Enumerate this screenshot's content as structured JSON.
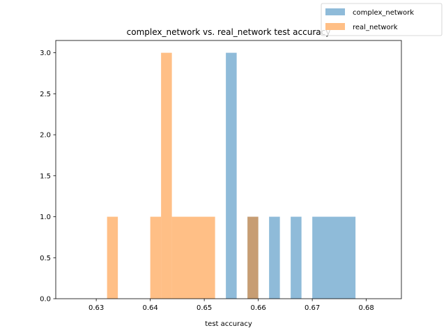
{
  "chart_data": {
    "type": "histogram",
    "title": "complex_network vs. real_network test accuracy",
    "xlabel": "test accuracy",
    "ylabel": "",
    "xlim": [
      0.6225,
      0.6865
    ],
    "ylim": [
      0,
      3.15
    ],
    "xticks": [
      "0.63",
      "0.64",
      "0.65",
      "0.66",
      "0.67",
      "0.68"
    ],
    "xtick_values": [
      0.63,
      0.64,
      0.65,
      0.66,
      0.67,
      0.68
    ],
    "yticks": [
      "0.0",
      "0.5",
      "1.0",
      "1.5",
      "2.0",
      "2.5",
      "3.0"
    ],
    "ytick_values": [
      0.0,
      0.5,
      1.0,
      1.5,
      2.0,
      2.5,
      3.0
    ],
    "legend_position": "top-right, outside plot",
    "series": [
      {
        "name": "complex_network",
        "color": "#1f77b4",
        "alpha": 0.5,
        "bins": [
          {
            "x0": 0.654,
            "x1": 0.656,
            "count": 3
          },
          {
            "x0": 0.658,
            "x1": 0.66,
            "count": 1
          },
          {
            "x0": 0.662,
            "x1": 0.664,
            "count": 1
          },
          {
            "x0": 0.666,
            "x1": 0.668,
            "count": 1
          },
          {
            "x0": 0.67,
            "x1": 0.678,
            "count": 1
          }
        ]
      },
      {
        "name": "real_network",
        "color": "#ff7f0e",
        "alpha": 0.5,
        "bins": [
          {
            "x0": 0.632,
            "x1": 0.634,
            "count": 1
          },
          {
            "x0": 0.64,
            "x1": 0.642,
            "count": 1
          },
          {
            "x0": 0.642,
            "x1": 0.644,
            "count": 3
          },
          {
            "x0": 0.644,
            "x1": 0.652,
            "count": 1
          },
          {
            "x0": 0.658,
            "x1": 0.66,
            "count": 1
          }
        ]
      }
    ]
  }
}
